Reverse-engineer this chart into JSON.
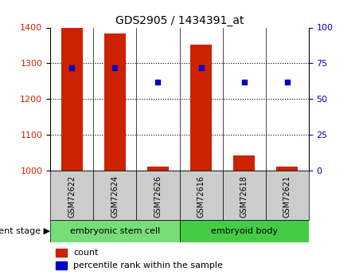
{
  "title": "GDS2905 / 1434391_at",
  "samples": [
    "GSM72622",
    "GSM72624",
    "GSM72626",
    "GSM72616",
    "GSM72618",
    "GSM72621"
  ],
  "counts": [
    1400,
    1383,
    1010,
    1352,
    1042,
    1012
  ],
  "percentiles": [
    72,
    72,
    62,
    72,
    62,
    62
  ],
  "ylim_left": [
    1000,
    1400
  ],
  "ylim_right": [
    0,
    100
  ],
  "yticks_left": [
    1000,
    1100,
    1200,
    1300,
    1400
  ],
  "yticks_right": [
    0,
    25,
    50,
    75,
    100
  ],
  "bar_color": "#cc2200",
  "dot_color": "#0000cc",
  "groups": [
    {
      "label": "embryonic stem cell",
      "indices": [
        0,
        1,
        2
      ],
      "color": "#77dd77"
    },
    {
      "label": "embryoid body",
      "indices": [
        3,
        4,
        5
      ],
      "color": "#44cc44"
    }
  ],
  "group_label": "development stage",
  "legend_count": "count",
  "legend_pct": "percentile rank within the sample",
  "tick_color_left": "#cc2200",
  "tick_color_right": "#0000cc",
  "xticklabel_bg": "#cccccc",
  "bar_width": 0.5
}
